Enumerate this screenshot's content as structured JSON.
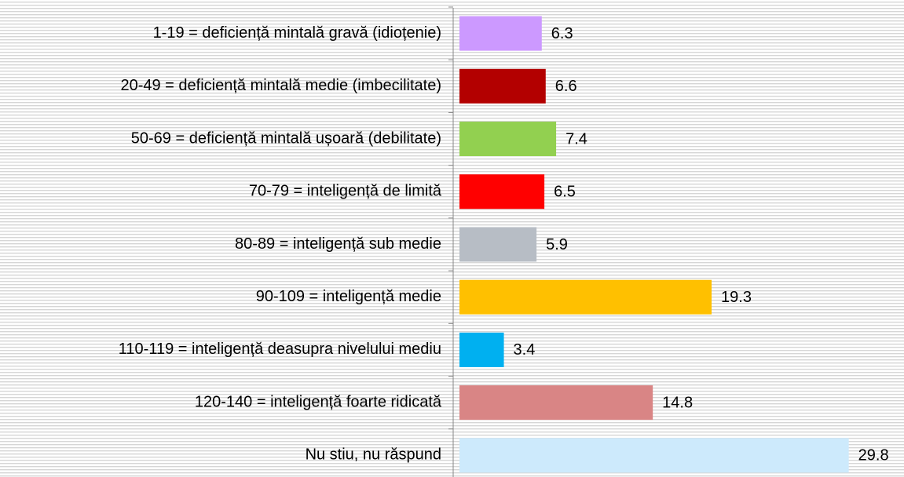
{
  "chart_data": {
    "type": "bar",
    "orientation": "horizontal",
    "categories": [
      "1-19 = deficiență mintală gravă (idioțenie)",
      "20-49 = deficiență mintală medie (imbecilitate)",
      "50-69 = deficiență mintală ușoară (debilitate)",
      "70-79 = inteligență de limită",
      "80-89 = inteligență sub medie",
      "90-109 = inteligență medie",
      "110-119 = inteligență deasupra nivelului mediu",
      "120-140 = inteligență foarte ridicată",
      "Nu stiu, nu răspund"
    ],
    "values": [
      6.3,
      6.6,
      7.4,
      6.5,
      5.9,
      19.3,
      3.4,
      14.8,
      29.8
    ],
    "colors": [
      "#cc99ff",
      "#b30000",
      "#92d050",
      "#ff0000",
      "#b7bdc5",
      "#ffc000",
      "#00b0f0",
      "#d98585",
      "#cdeafc"
    ],
    "xlim": [
      0,
      30
    ]
  }
}
